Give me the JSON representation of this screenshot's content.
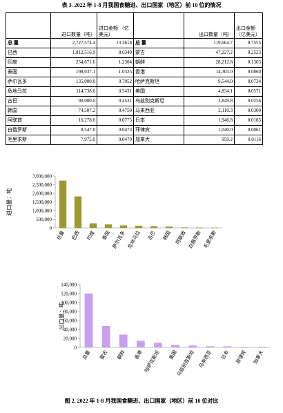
{
  "table": {
    "title": "表 3. 2022 年 1-8 月我国食糖进、出口国家（地区）前 10 位的情况",
    "headers": {
      "import_qty": "进口数量（吨）",
      "import_amt": "进口金额 （亿美元）",
      "export_qty": "出口数量（吨）",
      "export_amt": "出口金额 （亿美元）"
    },
    "rows": [
      [
        "总 量",
        "2,727,574.4",
        "13.3618",
        "总 量",
        "119,664.7",
        "0.7555"
      ],
      [
        "巴西",
        "1,812,516.9",
        "8.6340",
        "蒙古",
        "47,227.2",
        "0.2523"
      ],
      [
        "印度",
        "254,671.6",
        "1.2304",
        "朝鲜",
        "28,212.8",
        "0.1303"
      ],
      [
        "泰国",
        "198,037.1",
        "1.0325",
        "香港",
        "14,305.0",
        "0.0860"
      ],
      [
        "萨尔瓦多",
        "135,000.0",
        "0.7052",
        "哈萨克斯坦",
        "9,544.0",
        "0.0734"
      ],
      [
        "危地马拉",
        "114,738.0",
        "0.5431",
        "美国",
        "4,834.1",
        "0.0571"
      ],
      [
        "古巴",
        "90,000.0",
        "0.4531",
        "乌兹别克斯坦",
        "3,849.8",
        "0.0256"
      ],
      [
        "韩国",
        "74,507.2",
        "0.4750",
        "马来西亚",
        "2,110.3",
        "0.0300"
      ],
      [
        "阿联酋",
        "16,278.0",
        "0.0775",
        "日本",
        "1,946.8",
        "0.0185"
      ],
      [
        "白俄罗斯",
        "8,547.0",
        "0.0473",
        "菲律宾",
        "1,040.0",
        "0.0061"
      ],
      [
        "毛里求斯",
        "7,975.0",
        "0.0479",
        "加拿大",
        "959.2",
        "0.0116"
      ]
    ]
  },
  "charts": [
    {
      "type": "bar",
      "y_label": "进口量：吨",
      "color": "#9a9a30",
      "categories": [
        "总量",
        "巴西",
        "印度",
        "泰国",
        "萨尔瓦多",
        "危地马拉",
        "古巴",
        "韩国",
        "阿联酋",
        "白俄罗斯",
        "毛里求斯"
      ],
      "values": [
        2727574.4,
        1812516.9,
        254671.6,
        198037.1,
        135000,
        114738,
        90000,
        74507.2,
        16278,
        8547,
        7975
      ],
      "ylim": [
        0,
        3000000
      ],
      "yticks": [
        0,
        {
          "value": 500000,
          "label": "500,000"
        },
        {
          "value": 1000000,
          "label": "1,000,000"
        },
        {
          "value": 1500000,
          "label": "1,500,000"
        },
        {
          "value": 2000000,
          "label": "2,000,000"
        },
        {
          "value": 2500000,
          "label": "2,500,000"
        },
        {
          "value": 3000000,
          "label": "3,000,000"
        }
      ]
    },
    {
      "type": "bar",
      "y_label": "出口量：吨",
      "color": "#c7a0f0",
      "categories": [
        "总量",
        "蒙古",
        "朝鲜",
        "香港",
        "哈萨克斯坦",
        "美国",
        "乌兹别克斯坦",
        "马来西亚",
        "日本",
        "菲律宾",
        "加拿大"
      ],
      "values": [
        119664.7,
        47227.2,
        28212.8,
        14305,
        9544,
        4834.1,
        3849.8,
        2110.3,
        1946.8,
        1040,
        959.2
      ],
      "ylim": [
        0,
        140000
      ],
      "yticks": [
        0,
        {
          "value": 20000,
          "label": "20,000"
        },
        {
          "value": 40000,
          "label": "40,000"
        },
        {
          "value": 60000,
          "label": "60,000"
        },
        {
          "value": 80000,
          "label": "80,000"
        },
        {
          "value": 100000,
          "label": "100,000"
        },
        {
          "value": 120000,
          "label": "120,000"
        },
        {
          "value": 140000,
          "label": "140,000"
        }
      ]
    }
  ],
  "caption": "图 2. 2022 年 1-8 月我国食糖进、出口国家（地区）前 10 位对比"
}
